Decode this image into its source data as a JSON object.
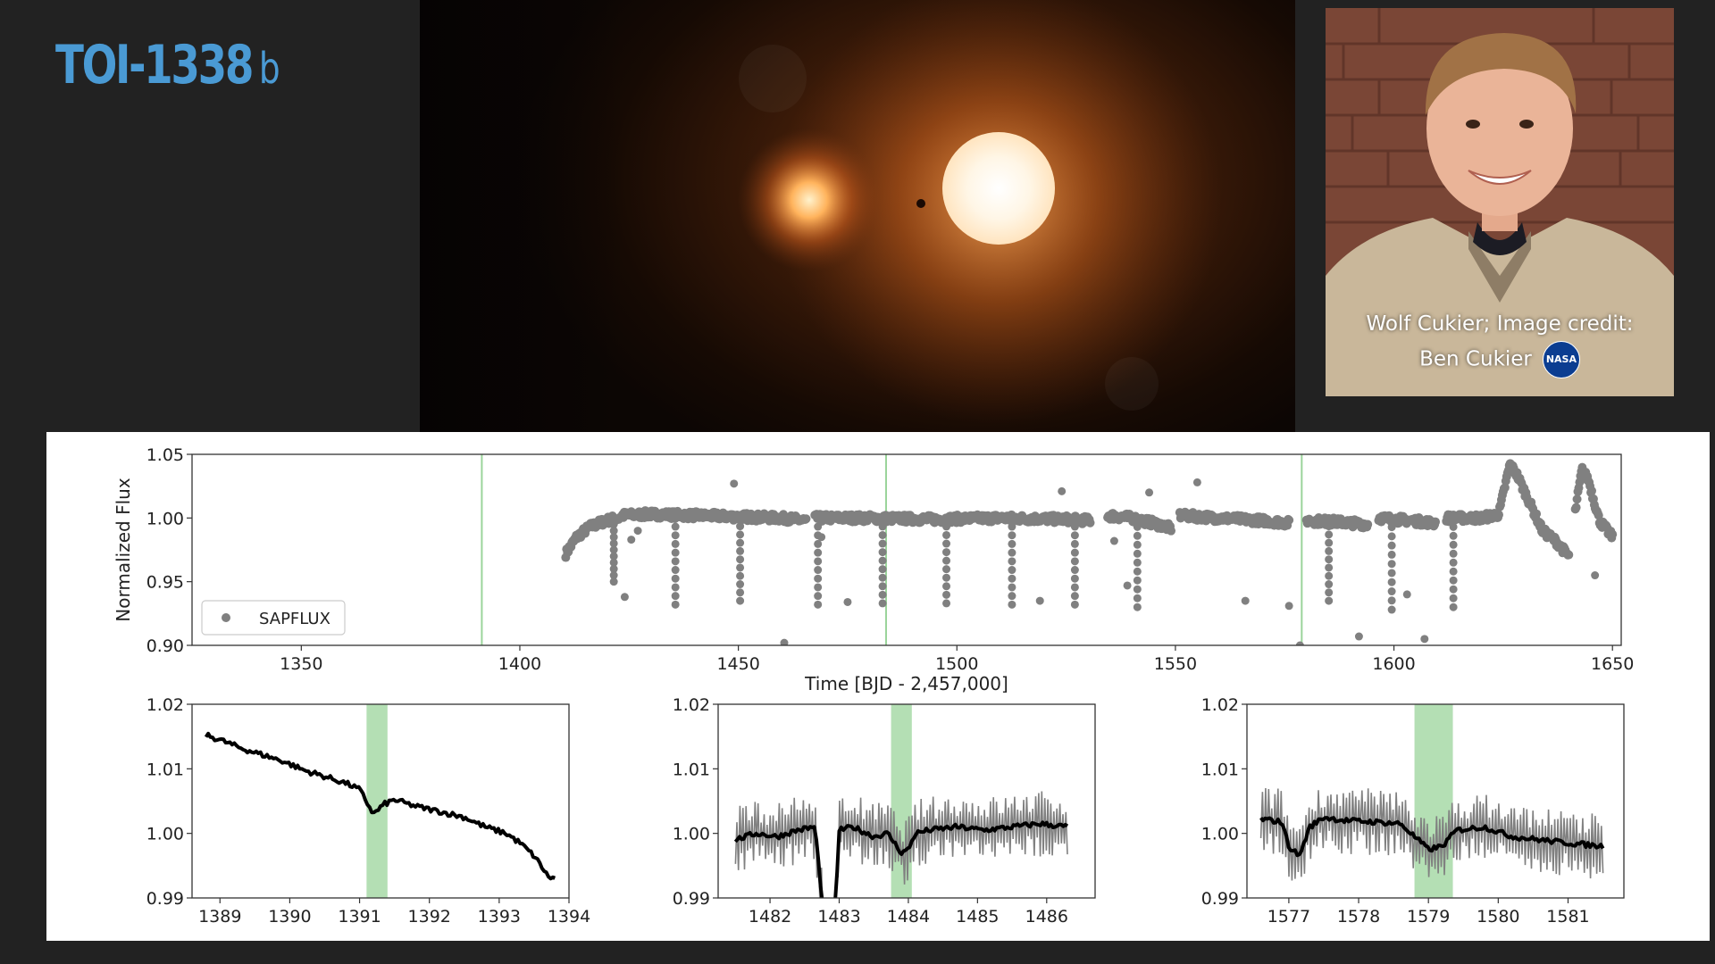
{
  "slide": {
    "title": "TOI-1338",
    "title_suffix": "b"
  },
  "photo": {
    "caption_line1": "Wolf Cukier; Image credit:",
    "caption_line2": "Ben Cukier",
    "logo_text": "NASA"
  },
  "colors": {
    "title": "#4a9ad4",
    "background": "#222222",
    "flux_points": "#808080",
    "binned_line": "#000000",
    "transit_marker": "#9bd49b"
  },
  "chart_data": [
    {
      "type": "scatter",
      "title": "",
      "xlabel": "Time [BJD - 2,457,000]",
      "ylabel": "Normalized Flux",
      "xlim": [
        1325,
        1652
      ],
      "ylim": [
        0.9,
        1.05
      ],
      "xticks": [
        1350,
        1400,
        1450,
        1500,
        1550,
        1600,
        1650
      ],
      "yticks": [
        "0.90",
        "0.95",
        "1.00",
        "1.05"
      ],
      "grid": false,
      "legend": {
        "placement": "lower-left",
        "entries": [
          "SAPFLUX"
        ]
      },
      "transit_lines_x": [
        1391.3,
        1483.8,
        1578.9
      ],
      "series": [
        {
          "name": "SAPFLUX",
          "color": "#808080",
          "segments": [
            {
              "x": [
                1410.5,
                1413,
                1416,
                1419,
                1421,
                1422.8
              ],
              "y": [
                0.972,
                0.985,
                0.993,
                0.997,
                0.999,
                1.0
              ]
            },
            {
              "x": [
                1423.5,
                1430,
                1440,
                1450,
                1460,
                1465.5
              ],
              "y": [
                1.002,
                1.003,
                1.002,
                1.001,
                1.0,
                0.998
              ]
            },
            {
              "x": [
                1467.5,
                1480,
                1495,
                1510,
                1525,
                1530.5
              ],
              "y": [
                1.0,
                1.0,
                0.999,
                1.0,
                0.999,
                0.998
              ]
            },
            {
              "x": [
                1534.5,
                1540,
                1545,
                1549
              ],
              "y": [
                1.002,
                1.0,
                0.996,
                0.992
              ]
            },
            {
              "x": [
                1551,
                1560,
                1570,
                1576
              ],
              "y": [
                1.002,
                1.0,
                0.998,
                0.996
              ]
            },
            {
              "x": [
                1580,
                1587,
                1594
              ],
              "y": [
                0.998,
                0.997,
                0.995
              ]
            },
            {
              "x": [
                1596.5,
                1604,
                1609.5
              ],
              "y": [
                1.0,
                0.998,
                0.996
              ]
            },
            {
              "x": [
                1612,
                1620,
                1624,
                1626.5,
                1628,
                1630,
                1634,
                1637,
                1640
              ],
              "y": [
                1.0,
                1.0,
                1.003,
                1.042,
                1.035,
                1.02,
                0.99,
                0.982,
                0.97
              ]
            },
            {
              "x": [
                1641.5,
                1643,
                1644.5,
                1647,
                1650
              ],
              "y": [
                1.005,
                1.038,
                1.03,
                0.998,
                0.985
              ]
            }
          ],
          "dips": [
            {
              "x": 1421.5,
              "min": 0.95
            },
            {
              "x": 1435.6,
              "min": 0.932
            },
            {
              "x": 1450.4,
              "min": 0.935
            },
            {
              "x": 1468.2,
              "min": 0.932
            },
            {
              "x": 1483.0,
              "min": 0.933
            },
            {
              "x": 1497.6,
              "min": 0.933
            },
            {
              "x": 1512.6,
              "min": 0.932
            },
            {
              "x": 1527.0,
              "min": 0.932
            },
            {
              "x": 1541.3,
              "min": 0.93
            },
            {
              "x": 1585.1,
              "min": 0.935
            },
            {
              "x": 1599.5,
              "min": 0.928
            },
            {
              "x": 1613.6,
              "min": 0.93
            }
          ],
          "outliers": [
            [
              1424,
              0.938
            ],
            [
              1425.5,
              0.983
            ],
            [
              1427,
              0.99
            ],
            [
              1431,
              1.005
            ],
            [
              1449,
              1.027
            ],
            [
              1460.5,
              0.902
            ],
            [
              1469,
              0.985
            ],
            [
              1475,
              0.934
            ],
            [
              1519,
              0.935
            ],
            [
              1524,
              1.021
            ],
            [
              1536,
              0.982
            ],
            [
              1539,
              0.947
            ],
            [
              1544,
              1.02
            ],
            [
              1555,
              1.028
            ],
            [
              1566,
              0.935
            ],
            [
              1576,
              0.931
            ],
            [
              1578.5,
              0.9
            ],
            [
              1592,
              0.907
            ],
            [
              1603,
              0.94
            ],
            [
              1607,
              0.905
            ],
            [
              1646,
              0.955
            ]
          ]
        }
      ]
    },
    {
      "type": "line",
      "title": "",
      "xlim": [
        1388.6,
        1394.0
      ],
      "ylim": [
        0.99,
        1.02
      ],
      "xticks": [
        1389,
        1390,
        1391,
        1392,
        1393,
        1394
      ],
      "yticks": [
        "0.99",
        "1.00",
        "1.01",
        "1.02"
      ],
      "transit_window": [
        1391.1,
        1391.4
      ],
      "series": [
        {
          "name": "",
          "color": "#000000",
          "x": [
            1388.8,
            1389.0,
            1389.3,
            1389.6,
            1389.9,
            1390.2,
            1390.5,
            1390.8,
            1391.0,
            1391.2,
            1391.35,
            1391.5,
            1391.8,
            1392.1,
            1392.5,
            1392.8,
            1393.1,
            1393.3,
            1393.5,
            1393.6,
            1393.7,
            1393.8
          ],
          "y": [
            1.0152,
            1.0145,
            1.0132,
            1.0122,
            1.0112,
            1.0098,
            1.0088,
            1.0078,
            1.0068,
            1.003,
            1.0045,
            1.0052,
            1.0042,
            1.0035,
            1.0025,
            1.001,
            1.0,
            0.9985,
            0.9965,
            0.995,
            0.9933,
            0.993
          ]
        }
      ]
    },
    {
      "type": "line",
      "title": "",
      "xlim": [
        1481.25,
        1486.7
      ],
      "ylim": [
        0.99,
        1.02
      ],
      "xticks": [
        1482,
        1483,
        1484,
        1485,
        1486
      ],
      "yticks": [
        "0.99",
        "1.00",
        "1.01",
        "1.02"
      ],
      "transit_window": [
        1483.75,
        1484.05
      ],
      "series": [
        {
          "name": "",
          "color": "#000000",
          "x": [
            1481.5,
            1481.8,
            1482.1,
            1482.4,
            1482.65,
            1482.75,
            1482.8,
            1482.9,
            1482.95,
            1483.0,
            1483.2,
            1483.5,
            1483.7,
            1483.8,
            1483.9,
            1484.0,
            1484.1,
            1484.3,
            1484.7,
            1485.1,
            1485.5,
            1485.9,
            1486.3
          ],
          "y": [
            0.999,
            1.0,
            0.9995,
            1.0005,
            1.001,
            0.99,
            0.985,
            0.985,
            0.99,
            1.0005,
            1.001,
            0.9995,
            1.0,
            0.9985,
            0.997,
            0.9975,
            1.0,
            1.0005,
            1.001,
            1.0005,
            1.001,
            1.0015,
            1.001
          ],
          "scatter_band": 0.004
        }
      ]
    },
    {
      "type": "line",
      "title": "",
      "xlim": [
        1576.4,
        1581.8
      ],
      "ylim": [
        0.99,
        1.02
      ],
      "xticks": [
        1577,
        1578,
        1579,
        1580,
        1581
      ],
      "yticks": [
        "0.99",
        "1.00",
        "1.01",
        "1.02"
      ],
      "transit_window": [
        1578.8,
        1579.35
      ],
      "series": [
        {
          "name": "",
          "color": "#000000",
          "x": [
            1576.6,
            1576.9,
            1577.0,
            1577.15,
            1577.3,
            1577.5,
            1577.8,
            1578.2,
            1578.6,
            1578.85,
            1579.0,
            1579.2,
            1579.4,
            1579.8,
            1580.2,
            1580.6,
            1581.0,
            1581.5
          ],
          "y": [
            1.0022,
            1.0018,
            0.998,
            0.9965,
            1.001,
            1.0025,
            1.002,
            1.0018,
            1.0015,
            0.999,
            0.9975,
            0.998,
            1.0005,
            1.001,
            0.9995,
            0.999,
            0.9985,
            0.998
          ],
          "scatter_band": 0.004
        }
      ]
    }
  ]
}
